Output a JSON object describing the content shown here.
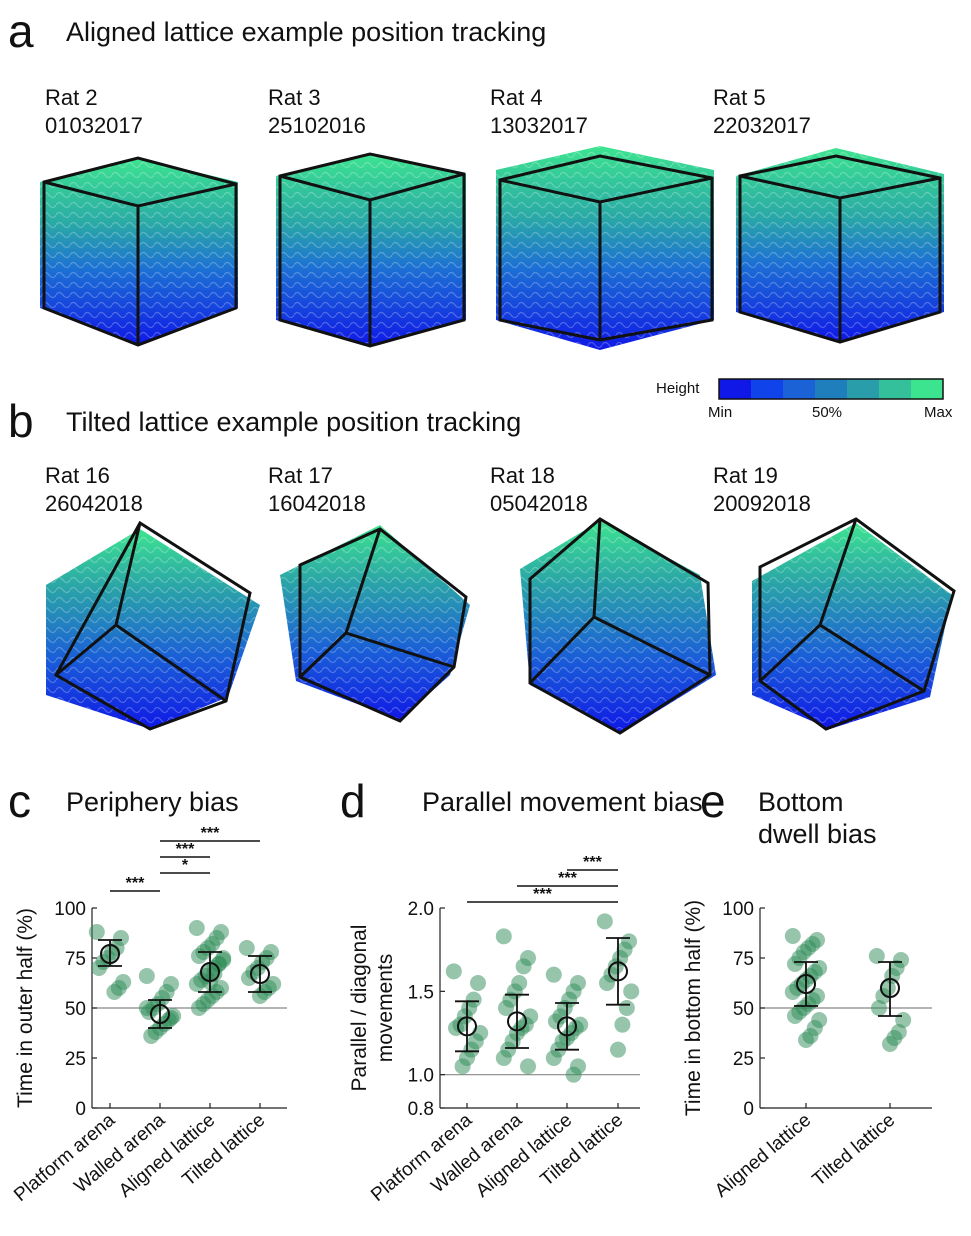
{
  "panel_a": {
    "letter": "a",
    "title": "Aligned lattice example position tracking",
    "rats": [
      {
        "name": "Rat 2",
        "date": "01032017"
      },
      {
        "name": "Rat 3",
        "date": "25102016"
      },
      {
        "name": "Rat 4",
        "date": "13032017"
      },
      {
        "name": "Rat 5",
        "date": "22032017"
      }
    ]
  },
  "colorbar": {
    "label": "Height",
    "ticks": [
      "Min",
      "50%",
      "Max"
    ],
    "colors": [
      "#0f18e6",
      "#1044ea",
      "#1a62d6",
      "#1f7fbd",
      "#2a9daa",
      "#34c09a",
      "#3de490"
    ]
  },
  "panel_b": {
    "letter": "b",
    "title": "Tilted lattice example position tracking",
    "rats": [
      {
        "name": "Rat 16",
        "date": "26042018"
      },
      {
        "name": "Rat 17",
        "date": "16042018"
      },
      {
        "name": "Rat 18",
        "date": "05042018"
      },
      {
        "name": "Rat 19",
        "date": "20092018"
      }
    ]
  },
  "chart_data": [
    {
      "panel": "c",
      "type": "scatter",
      "title": "Periphery bias",
      "ylabel": "Time in outer half (%)",
      "ylim": [
        0,
        100
      ],
      "yticks": [
        "0",
        "25",
        "50",
        "75",
        "100"
      ],
      "reference_line": 50,
      "categories": [
        "Platform arena",
        "Walled arena",
        "Aligned lattice",
        "Tilted lattice"
      ],
      "mean": [
        77,
        47,
        68,
        67
      ],
      "error_low": [
        71,
        40,
        58,
        58
      ],
      "error_high": [
        84,
        54,
        78,
        76
      ],
      "points": [
        [
          88,
          85,
          80,
          78,
          75,
          73,
          70,
          63,
          60,
          58
        ],
        [
          66,
          62,
          58,
          55,
          52,
          50,
          48,
          46,
          44,
          42,
          40,
          38,
          36,
          50,
          45
        ],
        [
          90,
          88,
          85,
          82,
          80,
          78,
          76,
          74,
          72,
          70,
          68,
          66,
          64,
          62,
          60,
          58,
          56,
          54,
          52,
          50,
          75,
          72,
          67,
          63
        ],
        [
          80,
          78,
          75,
          73,
          70,
          68,
          65,
          62,
          60,
          58,
          56
        ]
      ],
      "significance": [
        {
          "from": 0,
          "to": 1,
          "label": "***"
        },
        {
          "from": 1,
          "to": 2,
          "label": "*"
        },
        {
          "from": 1,
          "to": 2,
          "label": "***"
        },
        {
          "from": 1,
          "to": 3,
          "label": "***"
        }
      ],
      "point_color": "#2e8b57"
    },
    {
      "panel": "d",
      "type": "scatter",
      "title": "Parallel movement bias",
      "ylabel": "Parallel / diagonal movements",
      "ylim": [
        0.8,
        2.0
      ],
      "yticks": [
        "0.8",
        "1.0",
        "1.5",
        "2.0"
      ],
      "reference_line": 1.0,
      "categories": [
        "Platform arena",
        "Walled arena",
        "Aligned lattice",
        "Tilted lattice"
      ],
      "mean": [
        1.29,
        1.32,
        1.29,
        1.62
      ],
      "error_low": [
        1.14,
        1.16,
        1.15,
        1.42
      ],
      "error_high": [
        1.44,
        1.48,
        1.43,
        1.82
      ],
      "points": [
        [
          1.62,
          1.55,
          1.45,
          1.4,
          1.35,
          1.3,
          1.28,
          1.25,
          1.2,
          1.15,
          1.1,
          1.05
        ],
        [
          1.83,
          1.7,
          1.65,
          1.55,
          1.5,
          1.45,
          1.4,
          1.35,
          1.3,
          1.28,
          1.25,
          1.2,
          1.15,
          1.1,
          1.05
        ],
        [
          1.6,
          1.55,
          1.5,
          1.45,
          1.4,
          1.35,
          1.32,
          1.3,
          1.28,
          1.25,
          1.22,
          1.2,
          1.15,
          1.1,
          1.05,
          1.0
        ],
        [
          1.92,
          1.8,
          1.75,
          1.7,
          1.65,
          1.6,
          1.55,
          1.5,
          1.4,
          1.3,
          1.15
        ]
      ],
      "significance": [
        {
          "from": 0,
          "to": 3,
          "label": "***"
        },
        {
          "from": 1,
          "to": 3,
          "label": "***"
        },
        {
          "from": 2,
          "to": 3,
          "label": "***"
        }
      ],
      "point_color": "#2e8b57"
    },
    {
      "panel": "e",
      "type": "scatter",
      "title": "Bottom dwell bias",
      "ylabel": "Time in bottom half (%)",
      "ylim": [
        0,
        100
      ],
      "yticks": [
        "0",
        "25",
        "50",
        "75",
        "100"
      ],
      "reference_line": 50,
      "categories": [
        "Aligned lattice",
        "Tilted lattice"
      ],
      "mean": [
        62,
        60
      ],
      "error_low": [
        51,
        46
      ],
      "error_high": [
        73,
        73
      ],
      "points": [
        [
          86,
          84,
          82,
          80,
          78,
          75,
          72,
          70,
          68,
          66,
          64,
          62,
          60,
          58,
          56,
          54,
          52,
          50,
          48,
          46,
          44,
          40,
          36,
          34
        ],
        [
          76,
          74,
          70,
          66,
          60,
          56,
          50,
          44,
          38,
          35,
          32
        ]
      ],
      "significance": [],
      "point_color": "#2e8b57"
    }
  ]
}
